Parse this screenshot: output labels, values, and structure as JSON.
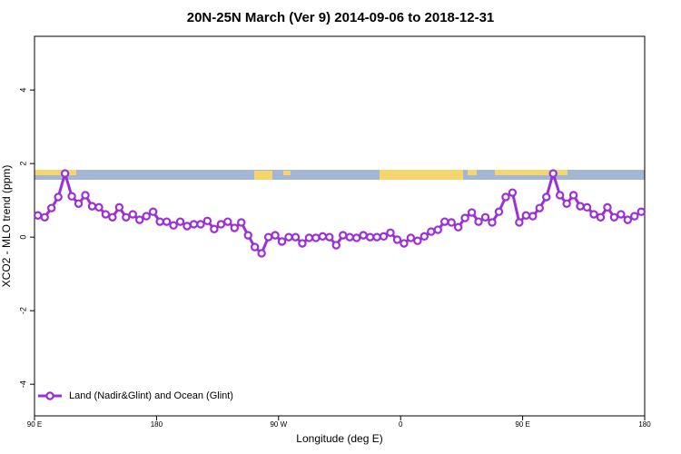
{
  "chart_data": {
    "type": "line",
    "title": "20N-25N March (Ver 9)   2014-09-06 to 2018-12-31",
    "xlabel": "Longitude (deg E)",
    "ylabel": "XCO2 - MLO trend (ppm)",
    "x": [
      92.5,
      97.5,
      102.5,
      107.5,
      112.5,
      117.5,
      122.5,
      127.5,
      132.5,
      137.5,
      142.5,
      147.5,
      152.5,
      157.5,
      162.5,
      167.5,
      172.5,
      177.5,
      182.5,
      187.5,
      192.5,
      197.5,
      202.5,
      207.5,
      212.5,
      217.5,
      222.5,
      227.5,
      232.5,
      237.5,
      242.5,
      247.5,
      252.5,
      257.5,
      262.5,
      267.5,
      272.5,
      277.5,
      282.5,
      287.5,
      292.5,
      297.5,
      302.5,
      307.5,
      312.5,
      317.5,
      322.5,
      327.5,
      332.5,
      337.5,
      342.5,
      347.5,
      352.5,
      357.5,
      362.5,
      367.5,
      372.5,
      377.5,
      382.5,
      387.5,
      392.5,
      397.5,
      402.5,
      407.5,
      412.5,
      417.5,
      422.5,
      427.5,
      432.5,
      437.5,
      442.5,
      447.5,
      452.5,
      457.5,
      462.5,
      467.5,
      472.5,
      477.5,
      482.5,
      487.5,
      492.5,
      497.5,
      502.5,
      507.5,
      512.5,
      517.5,
      522.5,
      527.5,
      532.5,
      537.5
    ],
    "series": [
      {
        "name": "Land (Nadir&Glint) and Ocean (Glint)",
        "color": "#9b30d9",
        "values": [
          0.59,
          0.54,
          0.79,
          1.09,
          1.73,
          1.11,
          0.91,
          1.14,
          0.84,
          0.81,
          0.62,
          0.54,
          0.81,
          0.54,
          0.62,
          0.47,
          0.57,
          0.69,
          0.42,
          0.42,
          0.32,
          0.42,
          0.3,
          0.35,
          0.35,
          0.44,
          0.22,
          0.35,
          0.42,
          0.25,
          0.4,
          0.05,
          -0.27,
          -0.44,
          0,
          0.05,
          -0.12,
          0,
          0,
          -0.17,
          -0.02,
          -0.02,
          0.02,
          0,
          -0.22,
          0.05,
          0,
          -0.02,
          0.05,
          0,
          0,
          0.02,
          0.12,
          -0.07,
          -0.17,
          -0.02,
          -0.1,
          0.02,
          0.15,
          0.2,
          0.42,
          0.4,
          0.27,
          0.52,
          0.67,
          0.42,
          0.54,
          0.4,
          0.69,
          1.09,
          1.21,
          0.4,
          0.59,
          0.57,
          0.79,
          1.09,
          1.73,
          1.14,
          0.91,
          1.14,
          0.84,
          0.81,
          0.62,
          0.54,
          0.81,
          0.54,
          0.62,
          0.47,
          0.57,
          0.69
        ]
      }
    ],
    "xlim": [
      90,
      540
    ],
    "xticks": [
      {
        "value": 90,
        "label": "90 E"
      },
      {
        "value": 180,
        "label": "180"
      },
      {
        "value": 270,
        "label": "90 W"
      },
      {
        "value": 360,
        "label": "0"
      },
      {
        "value": 450,
        "label": "90 E"
      },
      {
        "value": 540,
        "label": "180"
      }
    ],
    "ylim": [
      -4.86,
      5.46
    ],
    "yticks": [
      -4,
      -2,
      0,
      2,
      4
    ],
    "legend": "bottom-left"
  }
}
